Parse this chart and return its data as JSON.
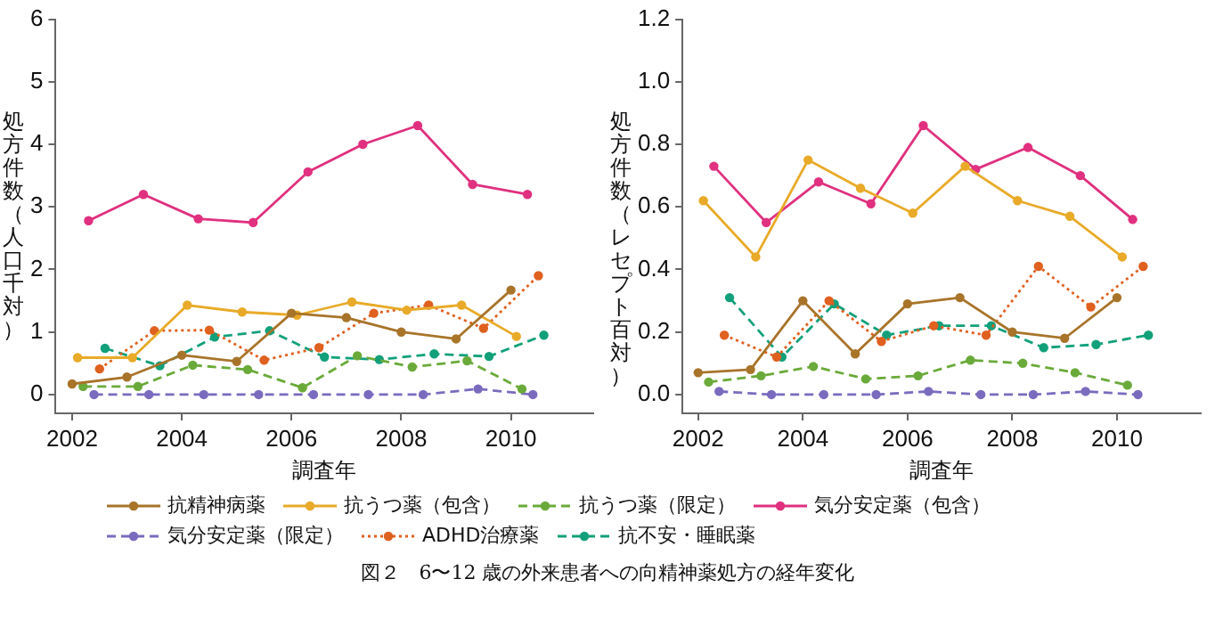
{
  "chart_data": [
    {
      "type": "line",
      "ylabel": "処方件数（人口千対）",
      "xlabel": "調査年",
      "xlim": [
        2001.7,
        2011.5
      ],
      "xticks": [
        2002,
        2004,
        2006,
        2008,
        2010
      ],
      "ylim": [
        -0.3,
        6
      ],
      "yticks": [
        0,
        1,
        2,
        3,
        4,
        5,
        6
      ],
      "grid": false,
      "legend": "bottom",
      "marker": "circle",
      "annotations": [
        "図２　6〜12 歳の外来患者への向精神薬処方の経年変化"
      ],
      "series": [
        {
          "name": "抗精神病薬",
          "color": "#a8742a",
          "line_style": "solid",
          "x": [
            2002,
            2003,
            2004,
            2005,
            2006,
            2007,
            2008,
            2009,
            2010
          ],
          "values": [
            0.17,
            0.28,
            0.63,
            0.53,
            1.3,
            1.23,
            1.0,
            0.89,
            1.67
          ]
        },
        {
          "name": "抗うつ薬（包含）",
          "color": "#e8aa28",
          "line_style": "solid",
          "x": [
            2002.1,
            2003.1,
            2004.1,
            2005.1,
            2006.1,
            2007.1,
            2008.1,
            2009.1,
            2010.1
          ],
          "values": [
            0.59,
            0.59,
            1.43,
            1.32,
            1.27,
            1.48,
            1.35,
            1.43,
            0.93
          ]
        },
        {
          "name": "抗うつ薬（限定）",
          "color": "#6aaa3a",
          "line_style": "dashed",
          "x": [
            2002.2,
            2003.2,
            2004.2,
            2005.2,
            2006.2,
            2007.2,
            2008.2,
            2009.2,
            2010.2
          ],
          "values": [
            0.13,
            0.13,
            0.47,
            0.4,
            0.11,
            0.62,
            0.44,
            0.54,
            0.09
          ]
        },
        {
          "name": "気分安定薬（包含）",
          "color": "#e0307f",
          "line_style": "solid",
          "x": [
            2002.3,
            2003.3,
            2004.3,
            2005.3,
            2006.3,
            2007.3,
            2008.3,
            2009.3,
            2010.3
          ],
          "values": [
            2.78,
            3.2,
            2.81,
            2.75,
            3.56,
            4.0,
            4.3,
            3.36,
            3.2
          ]
        },
        {
          "name": "気分安定薬（限定）",
          "color": "#7b6bbf",
          "line_style": "dashed",
          "x": [
            2002.4,
            2003.4,
            2004.4,
            2005.4,
            2006.4,
            2007.4,
            2008.4,
            2009.4,
            2010.4
          ],
          "values": [
            0,
            0,
            0,
            0,
            0,
            0,
            0,
            0.09,
            0
          ]
        },
        {
          "name": "ADHD治療薬",
          "color": "#e06020",
          "line_style": "dotted",
          "x": [
            2002.5,
            2003.5,
            2004.5,
            2005.5,
            2006.5,
            2007.5,
            2008.5,
            2009.5,
            2010.5
          ],
          "values": [
            0.41,
            1.02,
            1.03,
            0.55,
            0.75,
            1.3,
            1.43,
            1.06,
            1.9
          ]
        },
        {
          "name": "抗不安・睡眠薬",
          "color": "#12a07a",
          "line_style": "dashed",
          "x": [
            2002.6,
            2003.6,
            2004.6,
            2005.6,
            2006.6,
            2007.6,
            2008.6,
            2009.6,
            2010.6
          ],
          "values": [
            0.74,
            0.46,
            0.92,
            1.02,
            0.6,
            0.56,
            0.65,
            0.61,
            0.95
          ]
        }
      ]
    },
    {
      "type": "line",
      "ylabel": "処方件数（レセプト百対）",
      "xlabel": "調査年",
      "xlim": [
        2001.7,
        2011.6
      ],
      "xticks": [
        2002,
        2004,
        2006,
        2008,
        2010
      ],
      "ylim": [
        -0.06,
        1.2
      ],
      "yticks": [
        {
          "value": 0,
          "label": "0.0"
        },
        0.2,
        0.4,
        0.6,
        0.8,
        {
          "value": 1,
          "label": "1.0"
        },
        1.2
      ],
      "grid": false,
      "legend": "bottom",
      "marker": "circle",
      "series": [
        {
          "name": "抗精神病薬",
          "color": "#a8742a",
          "line_style": "solid",
          "x": [
            2002,
            2003,
            2004,
            2005,
            2006,
            2007,
            2008,
            2009,
            2010
          ],
          "values": [
            0.07,
            0.08,
            0.3,
            0.13,
            0.29,
            0.31,
            0.2,
            0.18,
            0.31
          ]
        },
        {
          "name": "抗うつ薬（包含）",
          "color": "#e8aa28",
          "line_style": "solid",
          "x": [
            2002.1,
            2003.1,
            2004.1,
            2005.1,
            2006.1,
            2007.1,
            2008.1,
            2009.1,
            2010.1
          ],
          "values": [
            0.62,
            0.44,
            0.75,
            0.66,
            0.58,
            0.73,
            0.62,
            0.57,
            0.44
          ]
        },
        {
          "name": "抗うつ薬（限定）",
          "color": "#6aaa3a",
          "line_style": "dashed",
          "x": [
            2002.2,
            2003.2,
            2004.2,
            2005.2,
            2006.2,
            2007.2,
            2008.2,
            2009.2,
            2010.2
          ],
          "values": [
            0.04,
            0.06,
            0.09,
            0.05,
            0.06,
            0.11,
            0.1,
            0.07,
            0.03
          ]
        },
        {
          "name": "気分安定薬（包含）",
          "color": "#e0307f",
          "line_style": "solid",
          "x": [
            2002.3,
            2003.3,
            2004.3,
            2005.3,
            2006.3,
            2007.3,
            2008.3,
            2009.3,
            2010.3
          ],
          "values": [
            0.73,
            0.55,
            0.68,
            0.61,
            0.86,
            0.72,
            0.79,
            0.7,
            0.56
          ]
        },
        {
          "name": "気分安定薬（限定）",
          "color": "#7b6bbf",
          "line_style": "dashed",
          "x": [
            2002.4,
            2003.4,
            2004.4,
            2005.4,
            2006.4,
            2007.4,
            2008.4,
            2009.4,
            2010.4
          ],
          "values": [
            0.01,
            0,
            0,
            0,
            0.01,
            0,
            0,
            0.01,
            0
          ]
        },
        {
          "name": "ADHD治療薬",
          "color": "#e06020",
          "line_style": "dotted",
          "x": [
            2002.5,
            2003.5,
            2004.5,
            2005.5,
            2006.5,
            2007.5,
            2008.5,
            2009.5,
            2010.5
          ],
          "values": [
            0.19,
            0.12,
            0.3,
            0.17,
            0.22,
            0.19,
            0.41,
            0.28,
            0.41
          ]
        },
        {
          "name": "抗不安・睡眠薬",
          "color": "#12a07a",
          "line_style": "dashed",
          "x": [
            2002.6,
            2003.6,
            2004.6,
            2005.6,
            2006.6,
            2007.6,
            2008.6,
            2009.6,
            2010.6
          ],
          "values": [
            0.31,
            0.12,
            0.29,
            0.19,
            0.22,
            0.22,
            0.15,
            0.16,
            0.19
          ]
        }
      ]
    }
  ]
}
